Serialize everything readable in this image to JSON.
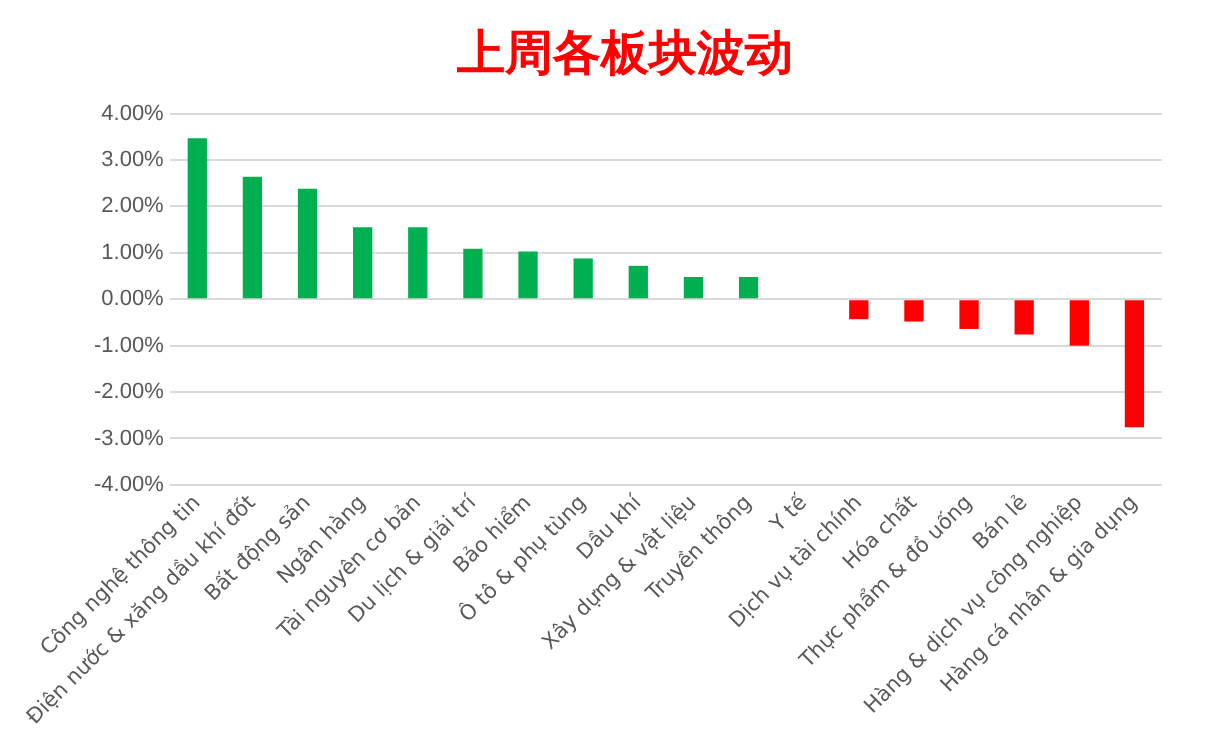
{
  "chart_data": {
    "type": "bar",
    "title": "上周各板块波动",
    "categories": [
      "Công nghệ thông tin",
      "Điện nước & xăng dầu khí đốt",
      "Bất động sản",
      "Ngân hàng",
      "Tài nguyên cơ bản",
      "Du lịch & giải trí",
      "Bảo hiểm",
      "Ô tô & phụ tùng",
      "Dầu khí",
      "Xây dựng & vật liệu",
      "Truyền thông",
      "Y tế",
      "Dịch vụ tài chính",
      "Hóa chất",
      "Thực phẩm & đồ uống",
      "Bán lẻ",
      "Hàng & dịch vụ công nghiệp",
      "Hàng cá nhân & gia dụng"
    ],
    "values": [
      3.47,
      2.64,
      2.38,
      1.55,
      1.55,
      1.09,
      1.03,
      0.88,
      0.72,
      0.48,
      0.48,
      0,
      -0.43,
      -0.48,
      -0.64,
      -0.76,
      -1.0,
      -2.76
    ],
    "colors": [
      "#00b050",
      "#00b050",
      "#00b050",
      "#00b050",
      "#00b050",
      "#00b050",
      "#00b050",
      "#00b050",
      "#00b050",
      "#00b050",
      "#00b050",
      "#00b050",
      "#ff0000",
      "#ff0000",
      "#ff0000",
      "#ff0000",
      "#ff0000",
      "#ff0000"
    ],
    "ylim": [
      -4,
      4
    ],
    "yticks": [
      {
        "value": -4,
        "label": "-4.00%"
      },
      {
        "value": -3,
        "label": "-3.00%"
      },
      {
        "value": -2,
        "label": "-2.00%"
      },
      {
        "value": -1,
        "label": "-1.00%"
      },
      {
        "value": 0,
        "label": "0.00%"
      },
      {
        "value": 1,
        "label": "1.00%"
      },
      {
        "value": 2,
        "label": "2.00%"
      },
      {
        "value": 3,
        "label": "3.00%"
      },
      {
        "value": 4,
        "label": "4.00%"
      }
    ],
    "grid": "y",
    "legend": false
  }
}
